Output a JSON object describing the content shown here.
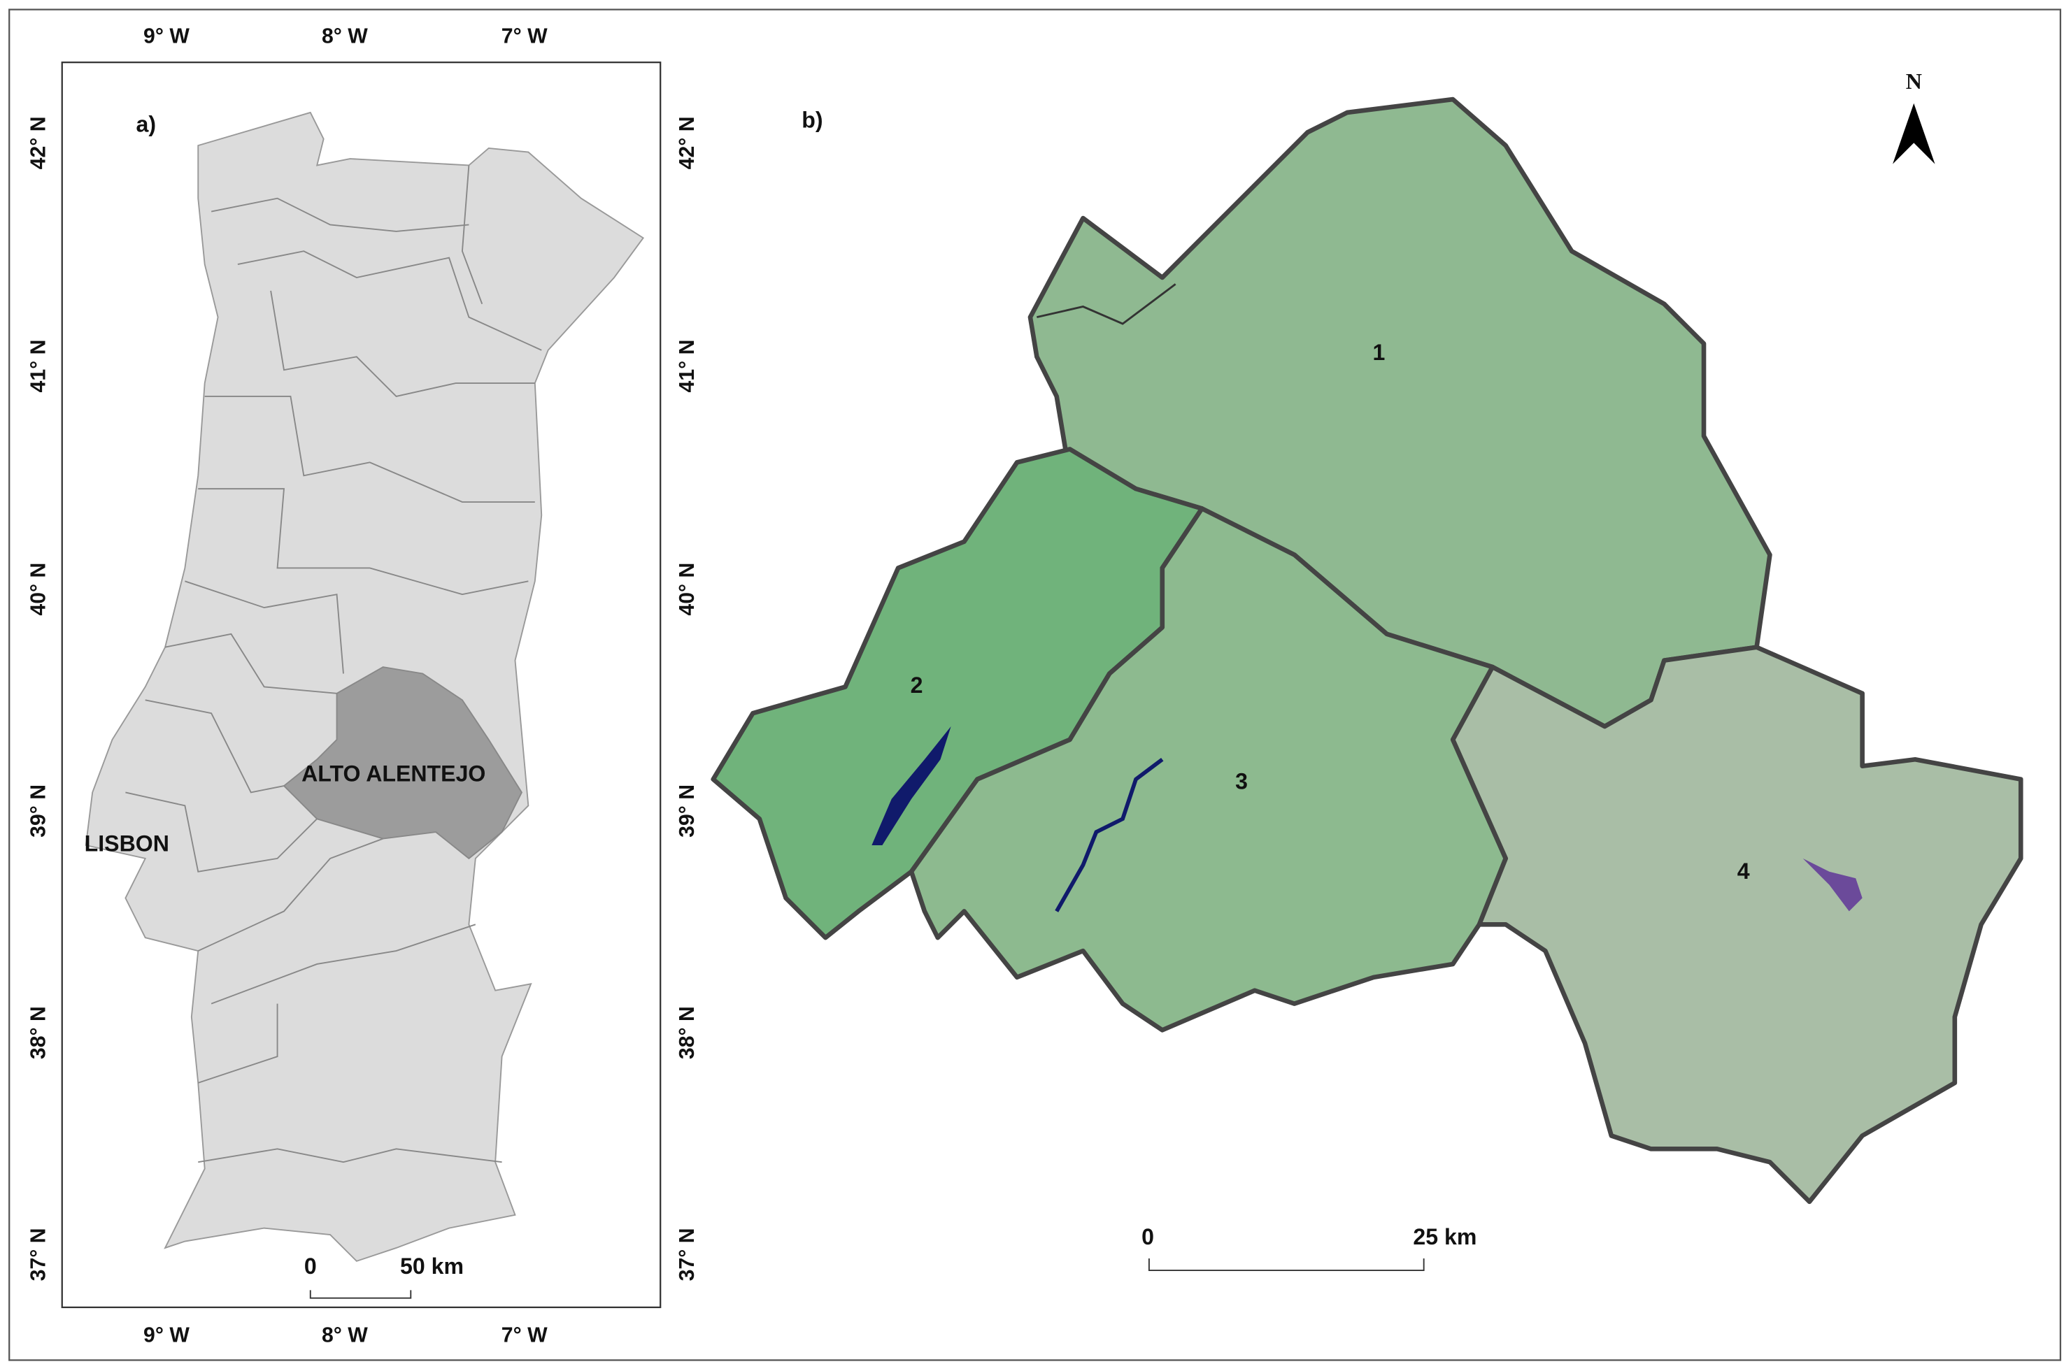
{
  "panel_a": {
    "label": "a)",
    "top_lon_labels": [
      "9° W",
      "8° W",
      "7° W"
    ],
    "bottom_lon_labels": [
      "9° W",
      "8° W",
      "7° W"
    ],
    "left_lat_labels": [
      "42° N",
      "41° N",
      "40° N",
      "39° N",
      "38° N",
      "37° N"
    ],
    "right_lat_labels": [
      "42° N",
      "41° N",
      "40° N",
      "39° N",
      "38° N",
      "37° N"
    ],
    "places": [
      "ALTO ALENTEJO",
      "LISBON"
    ],
    "scale_bar": [
      "0",
      "50 km"
    ]
  },
  "panel_b": {
    "label": "b)",
    "regions": [
      "1",
      "2",
      "3",
      "4"
    ],
    "north_arrow": "N",
    "scale_bar": [
      "0",
      "25 km"
    ]
  }
}
